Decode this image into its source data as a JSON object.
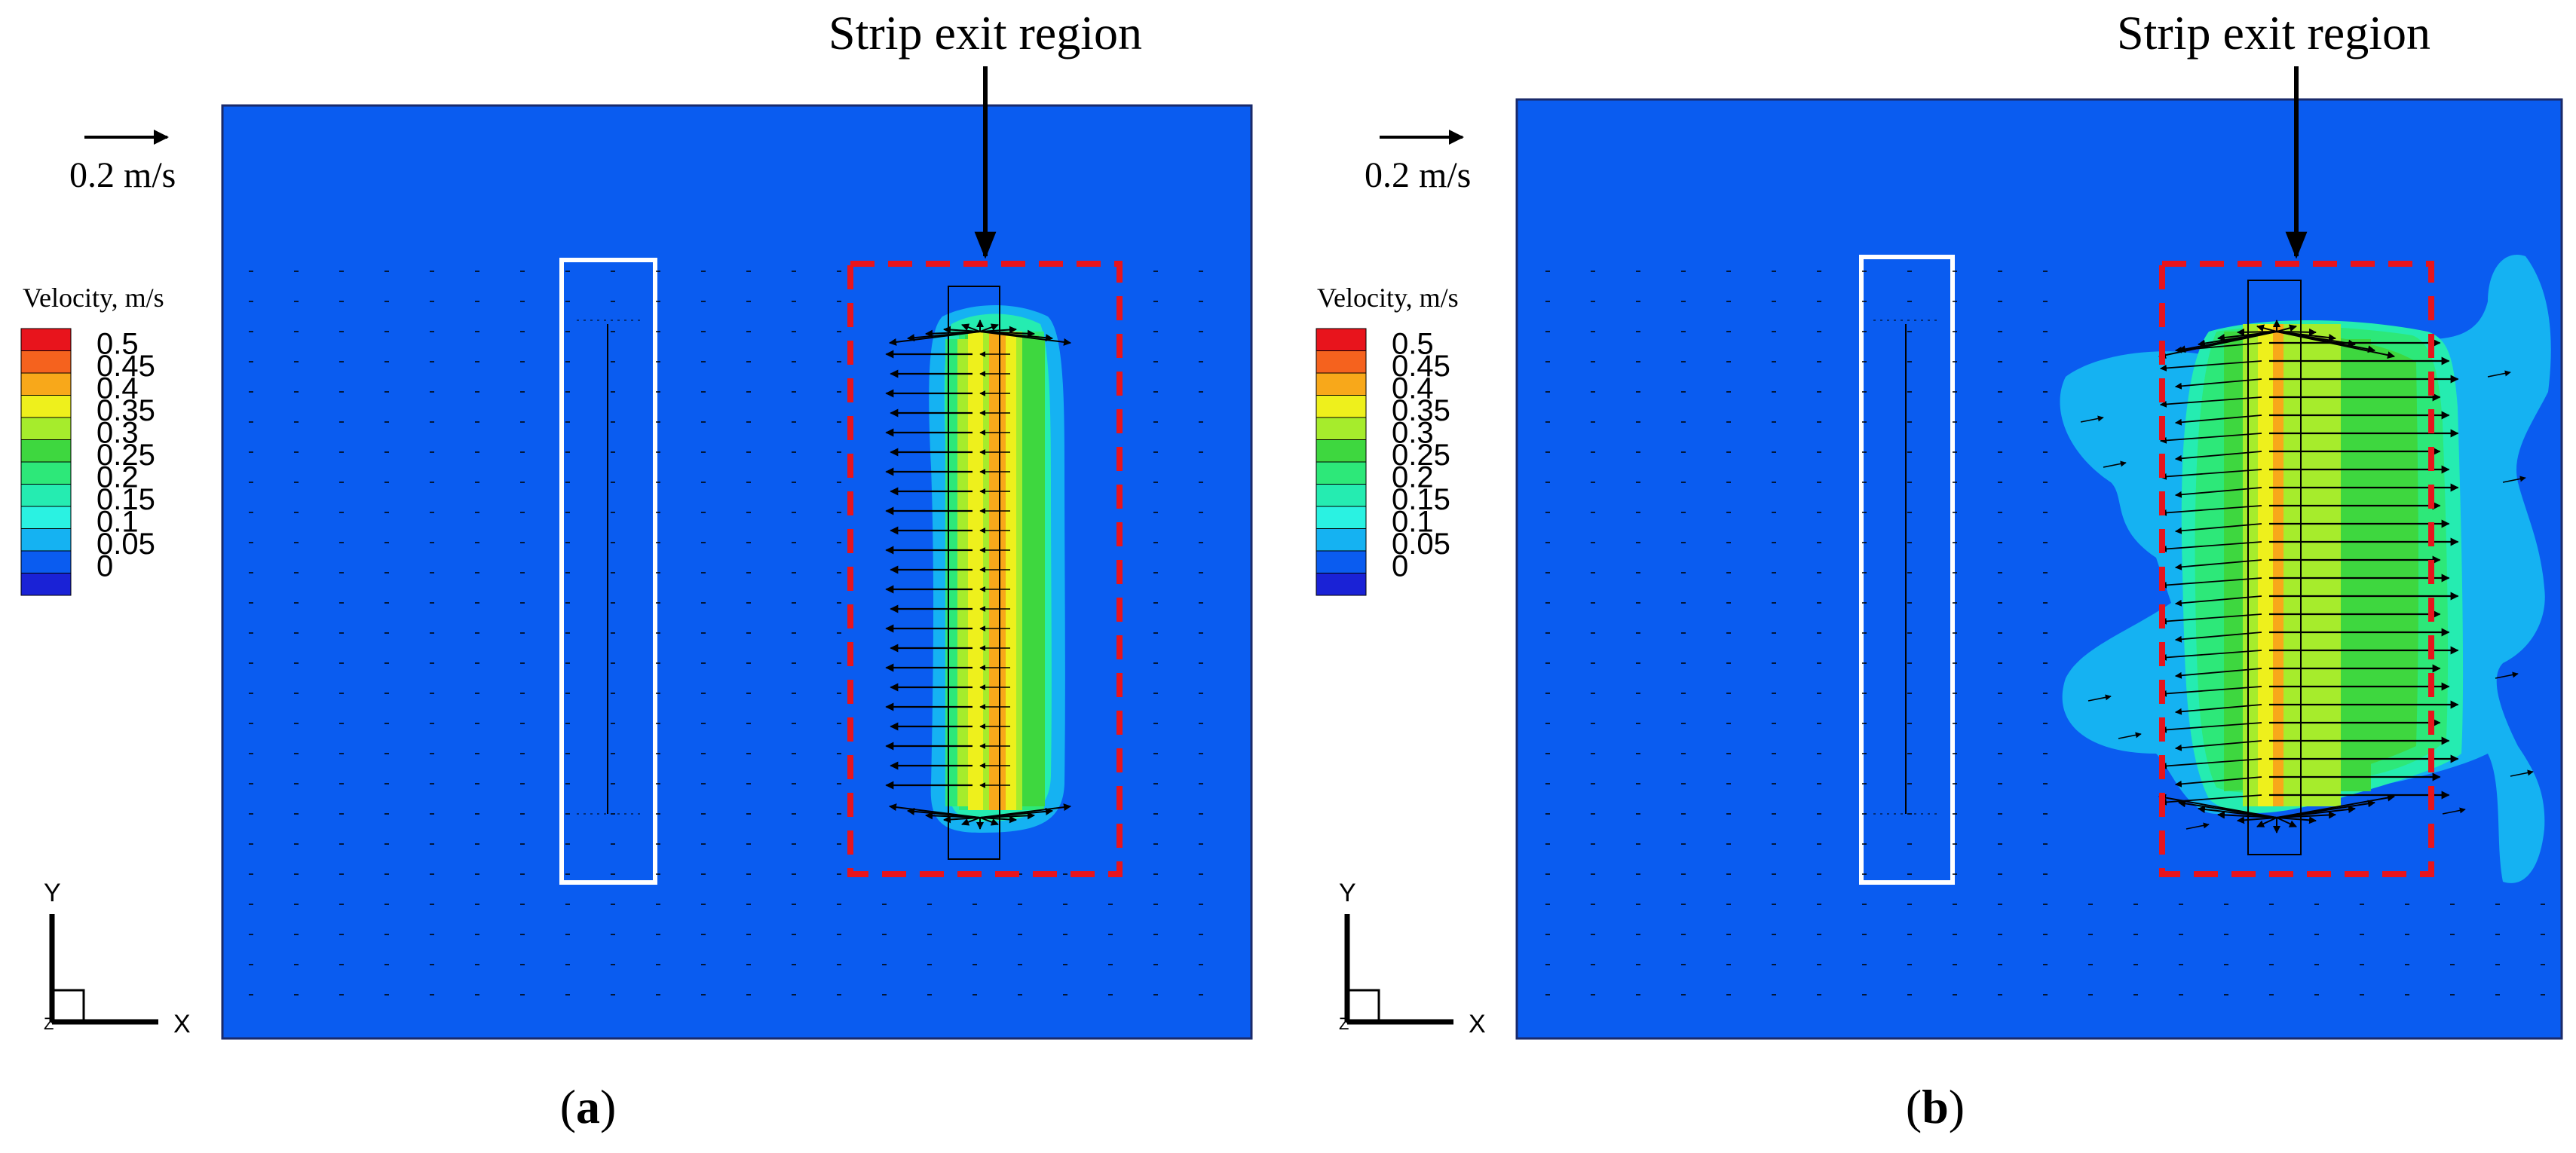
{
  "figure": {
    "colors": {
      "background_field": "#0a5cf0",
      "annotation_box": "#e8141c",
      "arrow": "#000000",
      "inlet_outline": "#ffffff"
    },
    "panels": [
      {
        "id": "a",
        "caption_label": "a",
        "annotation": "Strip exit region",
        "reference_vector_label": "0.2 m/s",
        "legend_title": "Velocity, m/s",
        "legend_levels": [
          "0.5",
          "0.45",
          "0.4",
          "0.35",
          "0.3",
          "0.25",
          "0.2",
          "0.15",
          "0.1",
          "0.05",
          "0"
        ],
        "axis_labels": {
          "y": "Y",
          "x": "X",
          "z": "Z"
        }
      },
      {
        "id": "b",
        "caption_label": "b",
        "annotation": "Strip exit region",
        "reference_vector_label": "0.2 m/s",
        "legend_title": "Velocity, m/s",
        "legend_levels": [
          "0.5",
          "0.45",
          "0.4",
          "0.35",
          "0.3",
          "0.25",
          "0.2",
          "0.15",
          "0.1",
          "0.05",
          "0"
        ],
        "axis_labels": {
          "y": "Y",
          "x": "X",
          "z": "Z"
        }
      }
    ],
    "legend_colors": [
      "#e8141c",
      "#f5621e",
      "#f8a81a",
      "#eef01c",
      "#a6ec2c",
      "#3ed73f",
      "#2de879",
      "#25ecb1",
      "#2af2e2",
      "#15b2f2",
      "#0a5cf0",
      "#1a22d6"
    ]
  }
}
